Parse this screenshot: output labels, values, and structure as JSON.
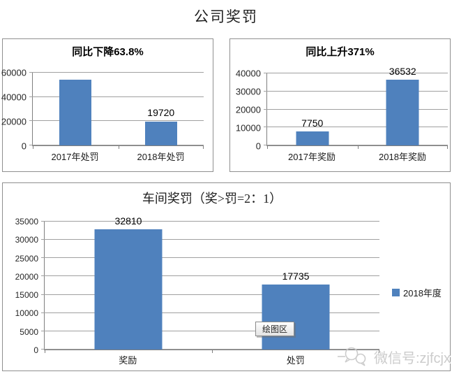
{
  "page": {
    "title": "公司奖罚"
  },
  "colors": {
    "bar": "#4f81bd",
    "gridline": "#a0a0a0",
    "axis": "#7f7f7f",
    "panel_border": "#8f8f8f",
    "watermark_text": "#cccccc"
  },
  "chart_data": [
    {
      "id": "company-punishment",
      "type": "bar",
      "title": "同比下降63.8%",
      "categories": [
        "2017年处罚",
        "2018年处罚"
      ],
      "values": [
        54475,
        19720
      ],
      "data_labels": [
        null,
        "19720"
      ],
      "y_ticks": [
        0,
        20000,
        40000,
        60000
      ],
      "ylim": [
        0,
        60000
      ],
      "grid": true,
      "legend_position": "none"
    },
    {
      "id": "company-reward",
      "type": "bar",
      "title": "同比上升371%",
      "categories": [
        "2017年奖励",
        "2018年奖励"
      ],
      "values": [
        7750,
        36532
      ],
      "data_labels": [
        "7750",
        "36532"
      ],
      "y_ticks": [
        0,
        10000,
        20000,
        30000,
        40000
      ],
      "ylim": [
        0,
        40000
      ],
      "grid": true,
      "legend_position": "none"
    },
    {
      "id": "workshop-reward-punishment",
      "type": "bar",
      "title": "车间奖罚（奖>罚=2：1）",
      "categories": [
        "奖励",
        "处罚"
      ],
      "values": [
        32810,
        17735
      ],
      "data_labels": [
        "32810",
        "17735"
      ],
      "y_ticks": [
        0,
        5000,
        10000,
        15000,
        20000,
        25000,
        30000,
        35000
      ],
      "ylim": [
        0,
        35000
      ],
      "grid": true,
      "series_name": "2018年度",
      "legend_position": "right",
      "plot_area_tooltip": "绘图区"
    }
  ],
  "watermark": {
    "icon": "wechat-icon",
    "text": "微信号:zjfcjx"
  }
}
